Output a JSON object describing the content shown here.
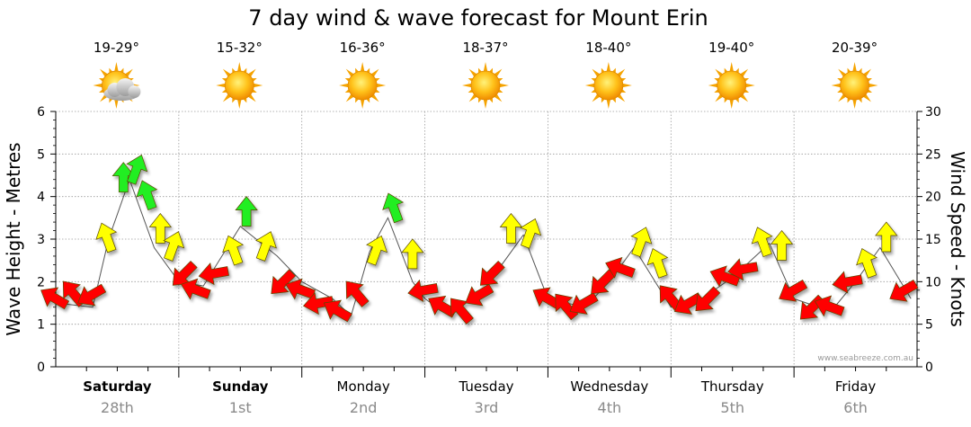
{
  "title": "7 day wind & wave forecast for Mount Erin",
  "credit": "www.seabreeze.com.au",
  "days": [
    {
      "name": "Saturday",
      "date": "28th",
      "temp": "19-29°",
      "icon": "partly-cloudy-sun-icon",
      "bold": true
    },
    {
      "name": "Sunday",
      "date": "1st",
      "temp": "15-32°",
      "icon": "sun-icon",
      "bold": true
    },
    {
      "name": "Monday",
      "date": "2nd",
      "temp": "16-36°",
      "icon": "sun-icon",
      "bold": false
    },
    {
      "name": "Tuesday",
      "date": "3rd",
      "temp": "18-37°",
      "icon": "sun-icon",
      "bold": false
    },
    {
      "name": "Wednesday",
      "date": "4th",
      "temp": "18-40°",
      "icon": "sun-icon",
      "bold": false
    },
    {
      "name": "Thursday",
      "date": "5th",
      "temp": "19-40°",
      "icon": "sun-icon",
      "bold": false
    },
    {
      "name": "Friday",
      "date": "6th",
      "temp": "20-39°",
      "icon": "sun-icon",
      "bold": false
    }
  ],
  "chart_data": {
    "type": "line",
    "title": "7 day wind & wave forecast for Mount Erin",
    "ylabel_left": "Wave Height - Metres",
    "ylabel_right": "Wind Speed - Knots",
    "y_left_range": [
      0,
      6
    ],
    "y_left_ticks": [
      "0",
      "1",
      "2",
      "3",
      "4",
      "5",
      "6"
    ],
    "y_right_range": [
      0,
      30
    ],
    "y_right_ticks": [
      "0",
      "5",
      "10",
      "15",
      "20",
      "25",
      "30"
    ],
    "x_day_range": [
      0,
      7
    ],
    "grid": true,
    "wind_colors": {
      "low": "#ff0000",
      "mid": "#ffff00",
      "high": "#22ee22"
    },
    "series": [
      {
        "name": "Wave Height - Metres",
        "unit": "m",
        "x_days": [
          0.0,
          0.3,
          0.43,
          0.6,
          0.8,
          1.0,
          1.2,
          1.5,
          1.8,
          2.0,
          2.25,
          2.4,
          2.55,
          2.7,
          2.9,
          3.0,
          3.2,
          3.5,
          3.8,
          4.0,
          4.3,
          4.5,
          4.7,
          5.0,
          5.2,
          5.5,
          5.8,
          6.0,
          6.3,
          6.5,
          6.7,
          6.95
        ],
        "values": [
          1.5,
          1.4,
          3.0,
          4.4,
          2.8,
          2.0,
          1.9,
          3.3,
          2.6,
          2.0,
          1.6,
          1.2,
          2.7,
          3.5,
          2.0,
          1.6,
          1.2,
          1.9,
          3.1,
          1.6,
          1.4,
          2.0,
          2.8,
          1.4,
          1.5,
          2.1,
          2.9,
          1.6,
          1.3,
          2.0,
          2.8,
          1.6
        ]
      },
      {
        "name": "Wind Speed - Knots",
        "unit": "kn",
        "x_days": [
          0.0,
          0.15,
          0.3,
          0.42,
          0.55,
          0.65,
          0.75,
          0.85,
          0.95,
          1.05,
          1.15,
          1.3,
          1.45,
          1.55,
          1.7,
          1.85,
          2.0,
          2.15,
          2.3,
          2.45,
          2.6,
          2.75,
          2.9,
          3.0,
          3.15,
          3.3,
          3.45,
          3.55,
          3.7,
          3.85,
          4.0,
          4.15,
          4.3,
          4.45,
          4.6,
          4.75,
          4.9,
          5.0,
          5.15,
          5.3,
          5.45,
          5.6,
          5.75,
          5.9,
          6.0,
          6.15,
          6.3,
          6.45,
          6.6,
          6.75,
          6.9
        ],
        "values": [
          8.0,
          8.5,
          8.5,
          15.0,
          22.0,
          23.0,
          20.0,
          16.0,
          14.0,
          11.0,
          9.0,
          11.0,
          13.5,
          18.0,
          14.0,
          10.0,
          9.0,
          7.5,
          6.5,
          8.5,
          13.5,
          18.5,
          13.0,
          9.0,
          7.0,
          6.5,
          8.5,
          11.0,
          16.0,
          15.5,
          8.0,
          7.0,
          7.5,
          10.0,
          11.5,
          14.5,
          12.0,
          8.0,
          7.5,
          8.0,
          10.5,
          11.5,
          14.5,
          14.0,
          9.0,
          7.0,
          7.0,
          10.0,
          12.0,
          15.0,
          9.0
        ]
      }
    ]
  }
}
